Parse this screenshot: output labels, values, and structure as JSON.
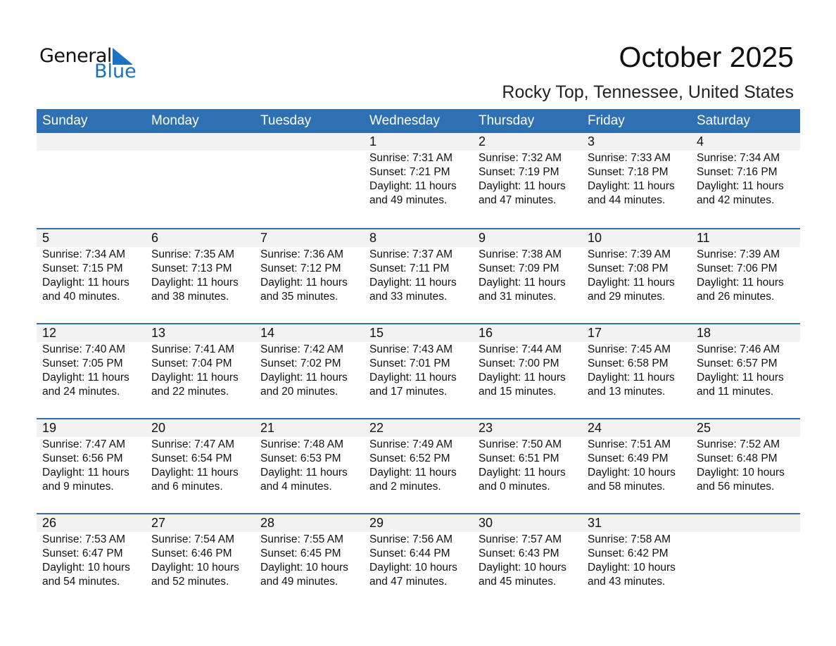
{
  "logo": {
    "text_top": "General",
    "text_bottom": "Blue"
  },
  "title": "October 2025",
  "subtitle": "Rocky Top, Tennessee, United States",
  "colors": {
    "header": "#2e70b1",
    "band": "#f2f2f2",
    "logo_blue": "#1a73c0"
  },
  "weekdays": [
    "Sunday",
    "Monday",
    "Tuesday",
    "Wednesday",
    "Thursday",
    "Friday",
    "Saturday"
  ],
  "weeks": [
    [
      null,
      null,
      null,
      {
        "day": "1",
        "sunrise": "Sunrise: 7:31 AM",
        "sunset": "Sunset: 7:21 PM",
        "daylight": "Daylight: 11 hours",
        "minutes": "and 49 minutes."
      },
      {
        "day": "2",
        "sunrise": "Sunrise: 7:32 AM",
        "sunset": "Sunset: 7:19 PM",
        "daylight": "Daylight: 11 hours",
        "minutes": "and 47 minutes."
      },
      {
        "day": "3",
        "sunrise": "Sunrise: 7:33 AM",
        "sunset": "Sunset: 7:18 PM",
        "daylight": "Daylight: 11 hours",
        "minutes": "and 44 minutes."
      },
      {
        "day": "4",
        "sunrise": "Sunrise: 7:34 AM",
        "sunset": "Sunset: 7:16 PM",
        "daylight": "Daylight: 11 hours",
        "minutes": "and 42 minutes."
      }
    ],
    [
      {
        "day": "5",
        "sunrise": "Sunrise: 7:34 AM",
        "sunset": "Sunset: 7:15 PM",
        "daylight": "Daylight: 11 hours",
        "minutes": "and 40 minutes."
      },
      {
        "day": "6",
        "sunrise": "Sunrise: 7:35 AM",
        "sunset": "Sunset: 7:13 PM",
        "daylight": "Daylight: 11 hours",
        "minutes": "and 38 minutes."
      },
      {
        "day": "7",
        "sunrise": "Sunrise: 7:36 AM",
        "sunset": "Sunset: 7:12 PM",
        "daylight": "Daylight: 11 hours",
        "minutes": "and 35 minutes."
      },
      {
        "day": "8",
        "sunrise": "Sunrise: 7:37 AM",
        "sunset": "Sunset: 7:11 PM",
        "daylight": "Daylight: 11 hours",
        "minutes": "and 33 minutes."
      },
      {
        "day": "9",
        "sunrise": "Sunrise: 7:38 AM",
        "sunset": "Sunset: 7:09 PM",
        "daylight": "Daylight: 11 hours",
        "minutes": "and 31 minutes."
      },
      {
        "day": "10",
        "sunrise": "Sunrise: 7:39 AM",
        "sunset": "Sunset: 7:08 PM",
        "daylight": "Daylight: 11 hours",
        "minutes": "and 29 minutes."
      },
      {
        "day": "11",
        "sunrise": "Sunrise: 7:39 AM",
        "sunset": "Sunset: 7:06 PM",
        "daylight": "Daylight: 11 hours",
        "minutes": "and 26 minutes."
      }
    ],
    [
      {
        "day": "12",
        "sunrise": "Sunrise: 7:40 AM",
        "sunset": "Sunset: 7:05 PM",
        "daylight": "Daylight: 11 hours",
        "minutes": "and 24 minutes."
      },
      {
        "day": "13",
        "sunrise": "Sunrise: 7:41 AM",
        "sunset": "Sunset: 7:04 PM",
        "daylight": "Daylight: 11 hours",
        "minutes": "and 22 minutes."
      },
      {
        "day": "14",
        "sunrise": "Sunrise: 7:42 AM",
        "sunset": "Sunset: 7:02 PM",
        "daylight": "Daylight: 11 hours",
        "minutes": "and 20 minutes."
      },
      {
        "day": "15",
        "sunrise": "Sunrise: 7:43 AM",
        "sunset": "Sunset: 7:01 PM",
        "daylight": "Daylight: 11 hours",
        "minutes": "and 17 minutes."
      },
      {
        "day": "16",
        "sunrise": "Sunrise: 7:44 AM",
        "sunset": "Sunset: 7:00 PM",
        "daylight": "Daylight: 11 hours",
        "minutes": "and 15 minutes."
      },
      {
        "day": "17",
        "sunrise": "Sunrise: 7:45 AM",
        "sunset": "Sunset: 6:58 PM",
        "daylight": "Daylight: 11 hours",
        "minutes": "and 13 minutes."
      },
      {
        "day": "18",
        "sunrise": "Sunrise: 7:46 AM",
        "sunset": "Sunset: 6:57 PM",
        "daylight": "Daylight: 11 hours",
        "minutes": "and 11 minutes."
      }
    ],
    [
      {
        "day": "19",
        "sunrise": "Sunrise: 7:47 AM",
        "sunset": "Sunset: 6:56 PM",
        "daylight": "Daylight: 11 hours",
        "minutes": "and 9 minutes."
      },
      {
        "day": "20",
        "sunrise": "Sunrise: 7:47 AM",
        "sunset": "Sunset: 6:54 PM",
        "daylight": "Daylight: 11 hours",
        "minutes": "and 6 minutes."
      },
      {
        "day": "21",
        "sunrise": "Sunrise: 7:48 AM",
        "sunset": "Sunset: 6:53 PM",
        "daylight": "Daylight: 11 hours",
        "minutes": "and 4 minutes."
      },
      {
        "day": "22",
        "sunrise": "Sunrise: 7:49 AM",
        "sunset": "Sunset: 6:52 PM",
        "daylight": "Daylight: 11 hours",
        "minutes": "and 2 minutes."
      },
      {
        "day": "23",
        "sunrise": "Sunrise: 7:50 AM",
        "sunset": "Sunset: 6:51 PM",
        "daylight": "Daylight: 11 hours",
        "minutes": "and 0 minutes."
      },
      {
        "day": "24",
        "sunrise": "Sunrise: 7:51 AM",
        "sunset": "Sunset: 6:49 PM",
        "daylight": "Daylight: 10 hours",
        "minutes": "and 58 minutes."
      },
      {
        "day": "25",
        "sunrise": "Sunrise: 7:52 AM",
        "sunset": "Sunset: 6:48 PM",
        "daylight": "Daylight: 10 hours",
        "minutes": "and 56 minutes."
      }
    ],
    [
      {
        "day": "26",
        "sunrise": "Sunrise: 7:53 AM",
        "sunset": "Sunset: 6:47 PM",
        "daylight": "Daylight: 10 hours",
        "minutes": "and 54 minutes."
      },
      {
        "day": "27",
        "sunrise": "Sunrise: 7:54 AM",
        "sunset": "Sunset: 6:46 PM",
        "daylight": "Daylight: 10 hours",
        "minutes": "and 52 minutes."
      },
      {
        "day": "28",
        "sunrise": "Sunrise: 7:55 AM",
        "sunset": "Sunset: 6:45 PM",
        "daylight": "Daylight: 10 hours",
        "minutes": "and 49 minutes."
      },
      {
        "day": "29",
        "sunrise": "Sunrise: 7:56 AM",
        "sunset": "Sunset: 6:44 PM",
        "daylight": "Daylight: 10 hours",
        "minutes": "and 47 minutes."
      },
      {
        "day": "30",
        "sunrise": "Sunrise: 7:57 AM",
        "sunset": "Sunset: 6:43 PM",
        "daylight": "Daylight: 10 hours",
        "minutes": "and 45 minutes."
      },
      {
        "day": "31",
        "sunrise": "Sunrise: 7:58 AM",
        "sunset": "Sunset: 6:42 PM",
        "daylight": "Daylight: 10 hours",
        "minutes": "and 43 minutes."
      },
      null
    ]
  ]
}
